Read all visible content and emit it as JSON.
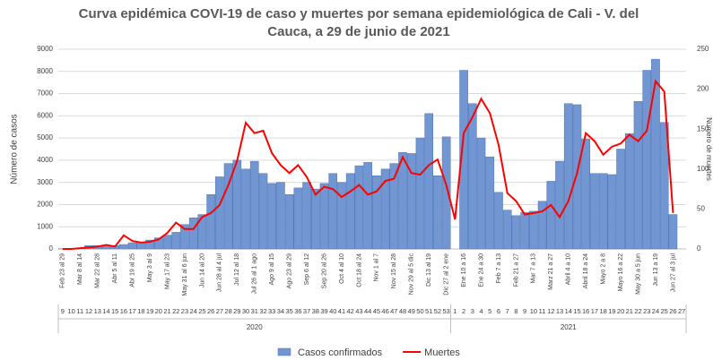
{
  "chart_data": {
    "type": "bar_line",
    "title": "Curva epidémica COVI-19 de caso y muertes por semana epidemiológica de Cali - V. del Cauca, a 29 de junio de 2021",
    "y_label": "Número de casos",
    "y2_label": "Número de muertes",
    "categories": [
      "9",
      "10",
      "11",
      "12",
      "13",
      "14",
      "15",
      "16",
      "17",
      "18",
      "19",
      "20",
      "21",
      "22",
      "23",
      "24",
      "25",
      "26",
      "27",
      "28",
      "29",
      "30",
      "31",
      "32",
      "33",
      "34",
      "35",
      "36",
      "37",
      "38",
      "39",
      "40",
      "41",
      "42",
      "43",
      "44",
      "45",
      "46",
      "47",
      "48",
      "49",
      "50",
      "51",
      "52",
      "53",
      "1",
      "2",
      "3",
      "4",
      "5",
      "6",
      "7",
      "8",
      "9",
      "10",
      "11",
      "12",
      "13",
      "14",
      "15",
      "16",
      "17",
      "18",
      "19",
      "20",
      "21",
      "22",
      "23",
      "24",
      "25",
      "26",
      "27"
    ],
    "date_labels": [
      "Feb 23 al 29",
      null,
      "Mar 8 al 14",
      null,
      "Mar 22 al 28",
      null,
      "Abr 5 al 11",
      null,
      "Abr 19 al 25",
      null,
      "May 3 al 9",
      null,
      "May 17 al 23",
      null,
      "May 31 al 6 jun",
      null,
      "Jun 14 al 20",
      null,
      "Jun 28 al 4 jul",
      null,
      "Jul 12 al 18",
      null,
      "Jul 26 al 1 ago",
      null,
      "Ago 9 al 15",
      null,
      "Ago 23 al 29",
      null,
      "Sep 6 al 12",
      null,
      "Sep 20 al 26",
      null,
      "Oct 4 al 10",
      null,
      "Oct 18 al 24",
      null,
      "Nov 1 al 7",
      null,
      "Nov 15 al 28",
      null,
      "Nov 29 al 5 dic",
      null,
      "Dic 13 al 19",
      null,
      "Dic 27 al 2 ene",
      null,
      "Ene 10 a 16",
      null,
      "Ene 24 a 30",
      null,
      "Feb 7 a 13",
      null,
      "Feb 21 a 27",
      null,
      "Mar 7 a 13",
      null,
      "Marz 21 a 27",
      null,
      "Abril 4 a 10",
      null,
      "Abril 18 a 24",
      null,
      "Mayo 2 a 8",
      null,
      "Mayo 16 a 22",
      null,
      "May 30 a 5 jun",
      null,
      "Jun 13 a 19",
      null,
      "Jun 27 al 3 jul",
      null
    ],
    "years": [
      "2020",
      "2021"
    ],
    "series": [
      {
        "name": "Casos confirmados",
        "color": "#7196d1",
        "type": "bar",
        "values": [
          10,
          20,
          50,
          150,
          150,
          150,
          150,
          200,
          280,
          300,
          400,
          500,
          620,
          750,
          1100,
          1400,
          1550,
          2450,
          3250,
          3850,
          4000,
          3600,
          3950,
          3400,
          2950,
          3000,
          2450,
          2750,
          3000,
          2700,
          2950,
          3400,
          3000,
          3400,
          3750,
          3900,
          3300,
          3600,
          3850,
          4350,
          4300,
          5000,
          6100,
          3300,
          5050,
          null,
          8050,
          6550,
          5000,
          4150,
          2550,
          1750,
          1500,
          1650,
          1700,
          2150,
          3050,
          3950,
          6550,
          6500,
          4950,
          3400,
          3400,
          3350,
          4500,
          5200,
          6650,
          8050,
          8550,
          5700,
          1550,
          null
        ]
      },
      {
        "name": "Muertes",
        "color": "#ff0000",
        "type": "line",
        "axis": "y2",
        "values": [
          0,
          0,
          1,
          2,
          3,
          5,
          3,
          17,
          10,
          8,
          9,
          12,
          20,
          33,
          25,
          25,
          40,
          45,
          55,
          80,
          110,
          158,
          145,
          148,
          120,
          105,
          95,
          105,
          90,
          68,
          78,
          75,
          65,
          72,
          80,
          68,
          72,
          85,
          88,
          115,
          95,
          93,
          105,
          112,
          80,
          37,
          145,
          165,
          188,
          170,
          130,
          70,
          60,
          43,
          45,
          47,
          55,
          40,
          60,
          95,
          145,
          135,
          118,
          128,
          132,
          143,
          135,
          148,
          210,
          197,
          45,
          null
        ]
      }
    ],
    "ylim": [
      0,
      9000
    ],
    "yticks": [
      0,
      1000,
      2000,
      3000,
      4000,
      5000,
      6000,
      7000,
      8000,
      9000
    ],
    "y2lim": [
      0,
      250
    ],
    "y2ticks": [
      0,
      50,
      100,
      150,
      200,
      250
    ],
    "grid": true,
    "legend": "bottom"
  }
}
